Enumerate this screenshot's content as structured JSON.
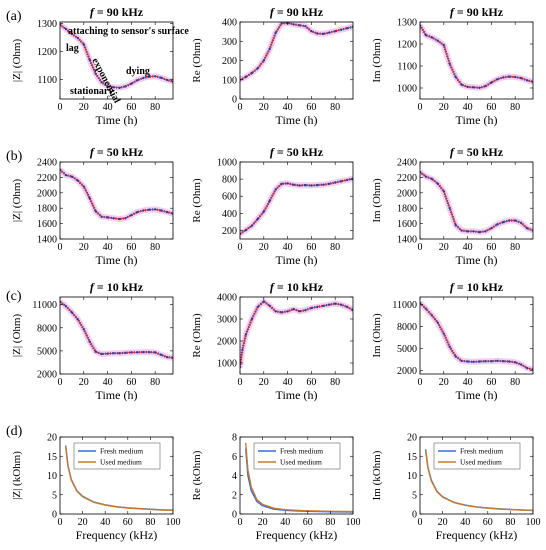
{
  "panel_letters": [
    "(a)",
    "(b)",
    "(c)",
    "(d)"
  ],
  "colors": {
    "measured": "#1c3fae",
    "fit": "#e0301e",
    "band": "#f4a0dc",
    "fresh_medium": "#2f6fe0",
    "used_medium": "#c8782a",
    "axis": "#000000"
  },
  "chart_data": [
    {
      "id": "a1",
      "type": "line",
      "title_prefix": "f",
      "title_suffix": " = 90 kHz",
      "xlabel": "Time (h)",
      "ylabel": "|Z| (Ohm)",
      "xlim": [
        0,
        95
      ],
      "ylim": [
        1030,
        1305
      ],
      "xticks": [
        0,
        20,
        40,
        60,
        80
      ],
      "yticks": [
        1100,
        1200,
        1300
      ],
      "annotations": [
        "attaching to sensor's surface",
        "lag",
        "exponential",
        "dying",
        "stationary"
      ],
      "x": [
        0,
        5,
        10,
        15,
        20,
        25,
        30,
        35,
        40,
        45,
        50,
        55,
        60,
        65,
        70,
        75,
        80,
        85,
        90,
        95
      ],
      "y": [
        1295,
        1280,
        1262,
        1248,
        1225,
        1170,
        1120,
        1090,
        1075,
        1072,
        1070,
        1075,
        1085,
        1097,
        1105,
        1110,
        1111,
        1106,
        1098,
        1092
      ]
    },
    {
      "id": "a2",
      "type": "line",
      "title_prefix": "f",
      "title_suffix": " = 90 kHz",
      "xlabel": "Time (h)",
      "ylabel": "Re (Ohm)",
      "xlim": [
        0,
        95
      ],
      "ylim": [
        0,
        400
      ],
      "xticks": [
        0,
        20,
        40,
        60,
        80
      ],
      "yticks": [
        0,
        100,
        200,
        300,
        400
      ],
      "x": [
        0,
        5,
        10,
        15,
        20,
        25,
        30,
        35,
        40,
        45,
        50,
        55,
        60,
        65,
        70,
        75,
        80,
        85,
        90,
        95
      ],
      "y": [
        100,
        115,
        135,
        160,
        200,
        260,
        345,
        392,
        395,
        388,
        383,
        378,
        352,
        340,
        338,
        345,
        352,
        360,
        368,
        375
      ]
    },
    {
      "id": "a3",
      "type": "line",
      "title_prefix": "f",
      "title_suffix": " = 90 kHz",
      "xlabel": "Time (h)",
      "ylabel": "Im (Ohm)",
      "xlim": [
        0,
        95
      ],
      "ylim": [
        950,
        1300
      ],
      "xticks": [
        0,
        20,
        40,
        60,
        80
      ],
      "yticks": [
        1000,
        1100,
        1200,
        1300
      ],
      "x": [
        0,
        5,
        10,
        15,
        20,
        25,
        30,
        35,
        40,
        45,
        50,
        55,
        60,
        65,
        70,
        75,
        80,
        85,
        90,
        95
      ],
      "y": [
        1285,
        1240,
        1230,
        1215,
        1195,
        1110,
        1050,
        1015,
        1005,
        1003,
        1001,
        1008,
        1025,
        1040,
        1048,
        1052,
        1050,
        1045,
        1035,
        1028
      ]
    },
    {
      "id": "b1",
      "type": "line",
      "title_prefix": "f",
      "title_suffix": " = 50 kHz",
      "xlabel": "Time (h)",
      "ylabel": "|Z| (Ohm)",
      "xlim": [
        0,
        95
      ],
      "ylim": [
        1400,
        2400
      ],
      "xticks": [
        0,
        20,
        40,
        60,
        80
      ],
      "yticks": [
        1400,
        1600,
        1800,
        2000,
        2200,
        2400
      ],
      "x": [
        0,
        5,
        10,
        15,
        20,
        25,
        30,
        35,
        40,
        45,
        50,
        55,
        60,
        65,
        70,
        75,
        80,
        85,
        90,
        95
      ],
      "y": [
        2300,
        2230,
        2210,
        2160,
        2080,
        1930,
        1760,
        1690,
        1680,
        1670,
        1660,
        1670,
        1710,
        1750,
        1770,
        1780,
        1785,
        1770,
        1750,
        1730
      ]
    },
    {
      "id": "b2",
      "type": "line",
      "title_prefix": "f",
      "title_suffix": " = 50 kHz",
      "xlabel": "Time (h)",
      "ylabel": "Re (Ohm)",
      "xlim": [
        0,
        95
      ],
      "ylim": [
        100,
        1000
      ],
      "xticks": [
        0,
        20,
        40,
        60,
        80
      ],
      "yticks": [
        200,
        400,
        600,
        800,
        1000
      ],
      "x": [
        0,
        5,
        10,
        15,
        20,
        25,
        30,
        35,
        40,
        45,
        50,
        55,
        60,
        65,
        70,
        75,
        80,
        85,
        90,
        95
      ],
      "y": [
        160,
        205,
        255,
        335,
        420,
        545,
        680,
        745,
        750,
        735,
        725,
        730,
        725,
        730,
        735,
        745,
        760,
        775,
        790,
        805
      ]
    },
    {
      "id": "b3",
      "type": "line",
      "title_prefix": "f",
      "title_suffix": " = 50 kHz",
      "xlabel": "Time (h)",
      "ylabel": "Im (Ohm)",
      "xlim": [
        0,
        95
      ],
      "ylim": [
        1400,
        2400
      ],
      "xticks": [
        0,
        20,
        40,
        60,
        80
      ],
      "yticks": [
        1400,
        1600,
        1800,
        2000,
        2200,
        2400
      ],
      "x": [
        0,
        5,
        10,
        15,
        20,
        25,
        30,
        35,
        40,
        45,
        50,
        55,
        60,
        65,
        70,
        75,
        80,
        85,
        90,
        95
      ],
      "y": [
        2270,
        2210,
        2180,
        2120,
        2020,
        1800,
        1580,
        1510,
        1500,
        1500,
        1490,
        1500,
        1540,
        1590,
        1620,
        1640,
        1640,
        1610,
        1540,
        1510
      ]
    },
    {
      "id": "c1",
      "type": "line",
      "title_prefix": "f",
      "title_suffix": " = 10 kHz",
      "xlabel": "Time (h)",
      "ylabel": "|Z| (Ohm)",
      "xlim": [
        0,
        95
      ],
      "ylim": [
        2000,
        12000
      ],
      "xticks": [
        0,
        20,
        40,
        60,
        80
      ],
      "yticks": [
        2000,
        5000,
        8000,
        11000
      ],
      "x": [
        0,
        5,
        10,
        15,
        20,
        25,
        30,
        35,
        40,
        45,
        50,
        55,
        60,
        65,
        70,
        75,
        80,
        85,
        90,
        95
      ],
      "y": [
        11400,
        10800,
        10000,
        9100,
        7800,
        6200,
        4900,
        4600,
        4650,
        4700,
        4700,
        4750,
        4800,
        4820,
        4850,
        4850,
        4800,
        4500,
        4200,
        4100
      ]
    },
    {
      "id": "c2",
      "type": "line",
      "title_prefix": "f",
      "title_suffix": " = 10 kHz",
      "xlabel": "Time (h)",
      "ylabel": "Re (Ohm)",
      "xlim": [
        0,
        95
      ],
      "ylim": [
        500,
        4000
      ],
      "xticks": [
        0,
        20,
        40,
        60,
        80
      ],
      "yticks": [
        1000,
        2000,
        3000,
        4000
      ],
      "x": [
        0,
        2,
        5,
        10,
        15,
        20,
        25,
        30,
        35,
        40,
        45,
        50,
        55,
        60,
        65,
        70,
        75,
        80,
        85,
        90,
        95
      ],
      "y": [
        800,
        1600,
        2300,
        3000,
        3550,
        3800,
        3600,
        3350,
        3300,
        3350,
        3450,
        3350,
        3400,
        3500,
        3550,
        3600,
        3650,
        3700,
        3650,
        3550,
        3400
      ]
    },
    {
      "id": "c3",
      "type": "line",
      "title_prefix": "f",
      "title_suffix": " = 10 kHz",
      "xlabel": "Time (h)",
      "ylabel": "Im (Ohm)",
      "xlim": [
        0,
        95
      ],
      "ylim": [
        1500,
        12000
      ],
      "xticks": [
        0,
        20,
        40,
        60,
        80
      ],
      "yticks": [
        2000,
        5000,
        8000,
        11000
      ],
      "x": [
        0,
        5,
        10,
        15,
        20,
        25,
        30,
        35,
        40,
        45,
        50,
        55,
        60,
        65,
        70,
        75,
        80,
        85,
        90,
        95
      ],
      "y": [
        11200,
        10400,
        9500,
        8500,
        7000,
        5200,
        3900,
        3300,
        3200,
        3150,
        3200,
        3250,
        3250,
        3300,
        3250,
        3200,
        3100,
        2800,
        2300,
        2100
      ]
    },
    {
      "id": "d1",
      "type": "line",
      "title_prefix": "",
      "title_suffix": "",
      "xlabel": "Frequency (kHz)",
      "ylabel": "|Z| (kOhm)",
      "xlim": [
        0,
        100
      ],
      "ylim": [
        0,
        20
      ],
      "xticks": [
        0,
        20,
        40,
        60,
        80,
        100
      ],
      "yticks": [
        0,
        5,
        10,
        15,
        20
      ],
      "legend": [
        "Fresh medium",
        "Used medium"
      ],
      "series": [
        {
          "name": "Fresh medium",
          "x": [
            5,
            7,
            10,
            15,
            20,
            30,
            40,
            50,
            60,
            70,
            80,
            90,
            100
          ],
          "y": [
            17.8,
            12.7,
            9.0,
            6.0,
            4.6,
            3.1,
            2.4,
            1.9,
            1.6,
            1.4,
            1.25,
            1.1,
            1.0
          ]
        },
        {
          "name": "Used medium",
          "x": [
            5,
            7,
            10,
            15,
            20,
            30,
            40,
            50,
            60,
            70,
            80,
            90,
            100
          ],
          "y": [
            17.5,
            12.5,
            8.8,
            5.9,
            4.5,
            3.0,
            2.3,
            1.85,
            1.55,
            1.35,
            1.2,
            1.05,
            0.95
          ]
        }
      ]
    },
    {
      "id": "d2",
      "type": "line",
      "title_prefix": "",
      "title_suffix": "",
      "xlabel": "Frequency (kHz)",
      "ylabel": "Re (kOhm)",
      "xlim": [
        0,
        100
      ],
      "ylim": [
        0,
        8
      ],
      "xticks": [
        0,
        20,
        40,
        60,
        80,
        100
      ],
      "yticks": [
        0,
        2,
        4,
        6,
        8
      ],
      "legend": [
        "Fresh medium",
        "Used medium"
      ],
      "series": [
        {
          "name": "Fresh medium",
          "x": [
            5,
            7,
            10,
            15,
            20,
            30,
            40,
            50,
            60,
            70,
            80,
            90,
            100
          ],
          "y": [
            6.8,
            4.0,
            2.4,
            1.3,
            0.85,
            0.5,
            0.38,
            0.32,
            0.28,
            0.25,
            0.23,
            0.22,
            0.2
          ]
        },
        {
          "name": "Used medium",
          "x": [
            5,
            7,
            10,
            15,
            20,
            30,
            40,
            50,
            60,
            70,
            80,
            90,
            100
          ],
          "y": [
            7.4,
            4.6,
            2.8,
            1.5,
            1.0,
            0.6,
            0.45,
            0.38,
            0.33,
            0.3,
            0.28,
            0.26,
            0.25
          ]
        }
      ]
    },
    {
      "id": "d3",
      "type": "line",
      "title_prefix": "",
      "title_suffix": "",
      "xlabel": "Frequency (kHz)",
      "ylabel": "Im (kOhm)",
      "xlim": [
        0,
        100
      ],
      "ylim": [
        0,
        20
      ],
      "xticks": [
        0,
        20,
        40,
        60,
        80,
        100
      ],
      "yticks": [
        0,
        5,
        10,
        15,
        20
      ],
      "legend": [
        "Fresh medium",
        "Used medium"
      ],
      "series": [
        {
          "name": "Fresh medium",
          "x": [
            5,
            7,
            10,
            15,
            20,
            30,
            40,
            50,
            60,
            70,
            80,
            90,
            100
          ],
          "y": [
            16.8,
            12.2,
            8.8,
            5.9,
            4.5,
            3.0,
            2.3,
            1.85,
            1.55,
            1.35,
            1.2,
            1.05,
            0.95
          ]
        },
        {
          "name": "Used medium",
          "x": [
            5,
            7,
            10,
            15,
            20,
            30,
            40,
            50,
            60,
            70,
            80,
            90,
            100
          ],
          "y": [
            16.5,
            12.0,
            8.6,
            5.8,
            4.4,
            2.95,
            2.25,
            1.8,
            1.5,
            1.3,
            1.15,
            1.0,
            0.9
          ]
        }
      ]
    }
  ]
}
